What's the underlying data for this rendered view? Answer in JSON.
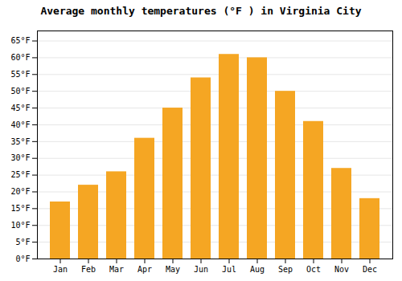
{
  "chart_data": {
    "type": "bar",
    "title": "Average monthly temperatures (°F ) in Virginia City",
    "categories": [
      "Jan",
      "Feb",
      "Mar",
      "Apr",
      "May",
      "Jun",
      "Jul",
      "Aug",
      "Sep",
      "Oct",
      "Nov",
      "Dec"
    ],
    "values": [
      17,
      22,
      26,
      36,
      45,
      54,
      61,
      60,
      50,
      41,
      27,
      18
    ],
    "color": "#F5A623",
    "ylim": [
      0,
      68
    ],
    "yticks": [
      {
        "value": 0,
        "label": "0°F"
      },
      {
        "value": 5,
        "label": "5°F"
      },
      {
        "value": 10,
        "label": "10°F"
      },
      {
        "value": 15,
        "label": "15°F"
      },
      {
        "value": 20,
        "label": "20°F"
      },
      {
        "value": 25,
        "label": "25°F"
      },
      {
        "value": 30,
        "label": "30°F"
      },
      {
        "value": 35,
        "label": "35°F"
      },
      {
        "value": 40,
        "label": "40°F"
      },
      {
        "value": 45,
        "label": "45°F"
      },
      {
        "value": 50,
        "label": "50°F"
      },
      {
        "value": 55,
        "label": "55°F"
      },
      {
        "value": 60,
        "label": "60°F"
      },
      {
        "value": 65,
        "label": "65°F"
      }
    ],
    "grid": true
  }
}
